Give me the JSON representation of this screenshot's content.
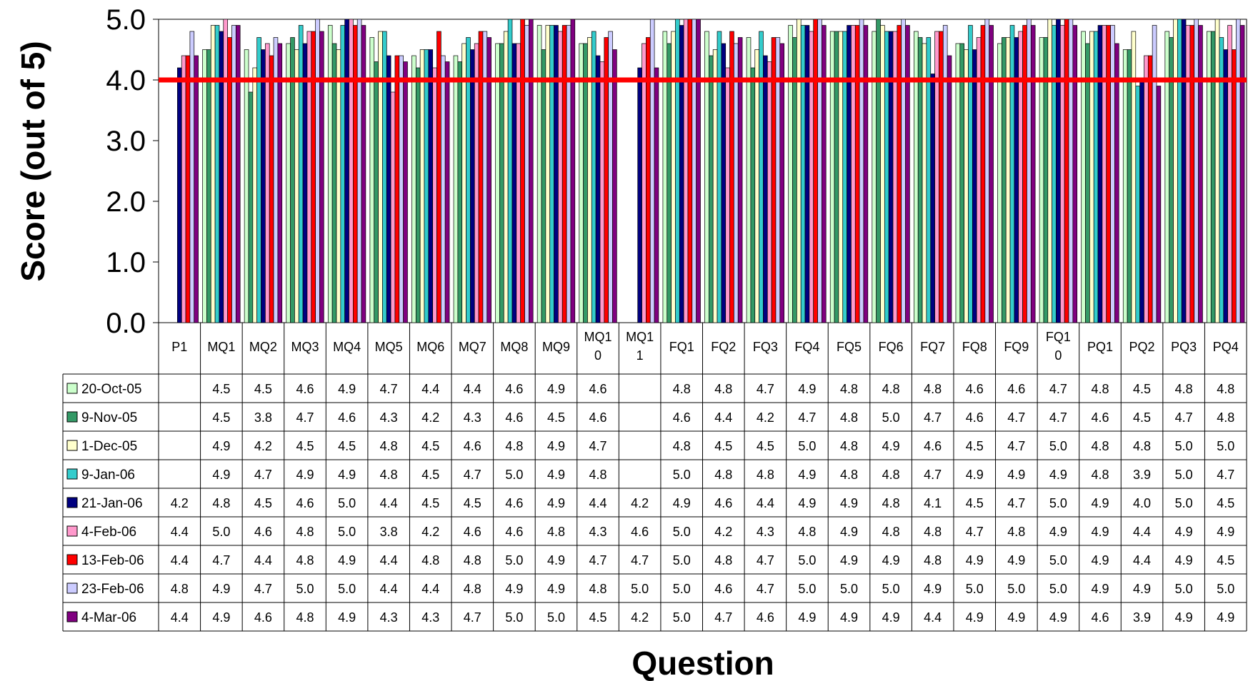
{
  "chart_data": {
    "type": "bar",
    "ylabel": "Score (out of 5)",
    "xlabel": "Question",
    "ylim": [
      0,
      5
    ],
    "yticks": [
      "0.0",
      "1.0",
      "2.0",
      "3.0",
      "4.0",
      "5.0"
    ],
    "reference_line": {
      "value": 4.0,
      "color": "#ff0000"
    },
    "categories": [
      "P1",
      "MQ1",
      "MQ2",
      "MQ3",
      "MQ4",
      "MQ5",
      "MQ6",
      "MQ7",
      "MQ8",
      "MQ9",
      "MQ10",
      "MQ11",
      "FQ1",
      "FQ2",
      "FQ3",
      "FQ4",
      "FQ5",
      "FQ6",
      "FQ7",
      "FQ8",
      "FQ9",
      "FQ10",
      "PQ1",
      "PQ2",
      "PQ3",
      "PQ4"
    ],
    "category_lines": [
      [
        "P1"
      ],
      [
        "MQ1"
      ],
      [
        "MQ2"
      ],
      [
        "MQ3"
      ],
      [
        "MQ4"
      ],
      [
        "MQ5"
      ],
      [
        "MQ6"
      ],
      [
        "MQ7"
      ],
      [
        "MQ8"
      ],
      [
        "MQ9"
      ],
      [
        "MQ1",
        "0"
      ],
      [
        "MQ1",
        "1"
      ],
      [
        "FQ1"
      ],
      [
        "FQ2"
      ],
      [
        "FQ3"
      ],
      [
        "FQ4"
      ],
      [
        "FQ5"
      ],
      [
        "FQ6"
      ],
      [
        "FQ7"
      ],
      [
        "FQ8"
      ],
      [
        "FQ9"
      ],
      [
        "FQ1",
        "0"
      ],
      [
        "PQ1"
      ],
      [
        "PQ2"
      ],
      [
        "PQ3"
      ],
      [
        "PQ4"
      ]
    ],
    "series": [
      {
        "name": "20-Oct-05",
        "color": "#ccffcc",
        "values": [
          null,
          "4.5",
          "4.5",
          "4.6",
          "4.9",
          "4.7",
          "4.4",
          "4.4",
          "4.6",
          "4.9",
          "4.6",
          null,
          "4.8",
          "4.8",
          "4.7",
          "4.9",
          "4.8",
          "4.8",
          "4.8",
          "4.6",
          "4.6",
          "4.7",
          "4.8",
          "4.5",
          "4.8",
          "4.8"
        ]
      },
      {
        "name": "9-Nov-05",
        "color": "#339966",
        "values": [
          null,
          "4.5",
          "3.8",
          "4.7",
          "4.6",
          "4.3",
          "4.2",
          "4.3",
          "4.6",
          "4.5",
          "4.6",
          null,
          "4.6",
          "4.4",
          "4.2",
          "4.7",
          "4.8",
          "5.0",
          "4.7",
          "4.6",
          "4.7",
          "4.7",
          "4.6",
          "4.5",
          "4.7",
          "4.8"
        ]
      },
      {
        "name": "1-Dec-05",
        "color": "#ffffcc",
        "values": [
          null,
          "4.9",
          "4.2",
          "4.5",
          "4.5",
          "4.8",
          "4.5",
          "4.6",
          "4.8",
          "4.9",
          "4.7",
          null,
          "4.8",
          "4.5",
          "4.5",
          "5.0",
          "4.8",
          "4.9",
          "4.6",
          "4.5",
          "4.7",
          "5.0",
          "4.8",
          "4.8",
          "5.0",
          "5.0"
        ]
      },
      {
        "name": "9-Jan-06",
        "color": "#33cccc",
        "values": [
          null,
          "4.9",
          "4.7",
          "4.9",
          "4.9",
          "4.8",
          "4.5",
          "4.7",
          "5.0",
          "4.9",
          "4.8",
          null,
          "5.0",
          "4.8",
          "4.8",
          "4.9",
          "4.8",
          "4.8",
          "4.7",
          "4.9",
          "4.9",
          "4.9",
          "4.8",
          "3.9",
          "5.0",
          "4.7"
        ]
      },
      {
        "name": "21-Jan-06",
        "color": "#000080",
        "values": [
          "4.2",
          "4.8",
          "4.5",
          "4.6",
          "5.0",
          "4.4",
          "4.5",
          "4.5",
          "4.6",
          "4.9",
          "4.4",
          "4.2",
          "4.9",
          "4.6",
          "4.4",
          "4.9",
          "4.9",
          "4.8",
          "4.1",
          "4.5",
          "4.7",
          "5.0",
          "4.9",
          "4.0",
          "5.0",
          "4.5"
        ]
      },
      {
        "name": "4-Feb-06",
        "color": "#ff99cc",
        "values": [
          "4.4",
          "5.0",
          "4.6",
          "4.8",
          "5.0",
          "3.8",
          "4.2",
          "4.6",
          "4.6",
          "4.8",
          "4.3",
          "4.6",
          "5.0",
          "4.2",
          "4.3",
          "4.8",
          "4.9",
          "4.8",
          "4.8",
          "4.7",
          "4.8",
          "4.9",
          "4.9",
          "4.4",
          "4.9",
          "4.9"
        ]
      },
      {
        "name": "13-Feb-06",
        "color": "#ff0000",
        "values": [
          "4.4",
          "4.7",
          "4.4",
          "4.8",
          "4.9",
          "4.4",
          "4.8",
          "4.8",
          "5.0",
          "4.9",
          "4.7",
          "4.7",
          "5.0",
          "4.8",
          "4.7",
          "5.0",
          "4.9",
          "4.9",
          "4.8",
          "4.9",
          "4.9",
          "5.0",
          "4.9",
          "4.4",
          "4.9",
          "4.5"
        ]
      },
      {
        "name": "23-Feb-06",
        "color": "#ccccff",
        "values": [
          "4.8",
          "4.9",
          "4.7",
          "5.0",
          "5.0",
          "4.4",
          "4.4",
          "4.8",
          "4.9",
          "4.9",
          "4.8",
          "5.0",
          "5.0",
          "4.6",
          "4.7",
          "5.0",
          "5.0",
          "5.0",
          "4.9",
          "5.0",
          "5.0",
          "5.0",
          "4.9",
          "4.9",
          "5.0",
          "5.0"
        ]
      },
      {
        "name": "4-Mar-06",
        "color": "#800080",
        "values": [
          "4.4",
          "4.9",
          "4.6",
          "4.8",
          "4.9",
          "4.3",
          "4.3",
          "4.7",
          "5.0",
          "5.0",
          "4.5",
          "4.2",
          "5.0",
          "4.7",
          "4.6",
          "4.9",
          "4.9",
          "4.9",
          "4.4",
          "4.9",
          "4.9",
          "4.9",
          "4.6",
          "3.9",
          "4.9",
          "4.9"
        ]
      }
    ]
  }
}
